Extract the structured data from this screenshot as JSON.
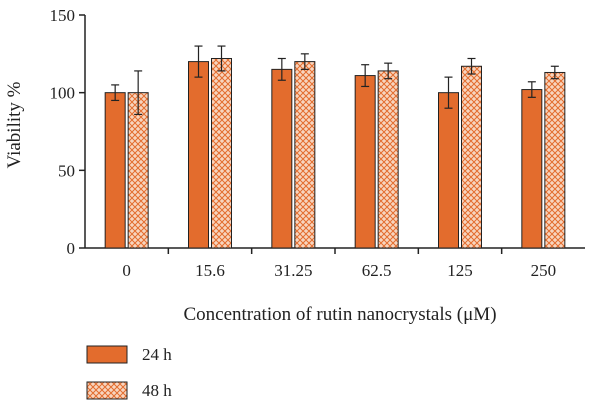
{
  "chart_data": {
    "type": "bar",
    "categories": [
      "0",
      "15.6",
      "31.25",
      "62.5",
      "125",
      "250"
    ],
    "series": [
      {
        "name": "24 h",
        "values": [
          100,
          120,
          115,
          111,
          100,
          102
        ],
        "errors": [
          5,
          10,
          7,
          7,
          10,
          5
        ],
        "pattern": "solid"
      },
      {
        "name": "48 h",
        "values": [
          100,
          122,
          120,
          114,
          117,
          113
        ],
        "errors": [
          14,
          8,
          5,
          5,
          5,
          4
        ],
        "pattern": "crosshatch"
      }
    ],
    "title": "",
    "xlabel": "Concentration of rutin nanocrystals (μM)",
    "ylabel": "Viability %",
    "ylim": [
      0,
      150
    ],
    "yticks": [
      0,
      50,
      100,
      150
    ],
    "grid": false,
    "legend_position": "bottom-left"
  },
  "colors": {
    "bar_24h": "#e36c2d",
    "bar_48h_fill": "#f7d5bf",
    "bar_48h_hatch": "#e36c2d",
    "bar_outline": "#222222",
    "axis": "#222222"
  }
}
